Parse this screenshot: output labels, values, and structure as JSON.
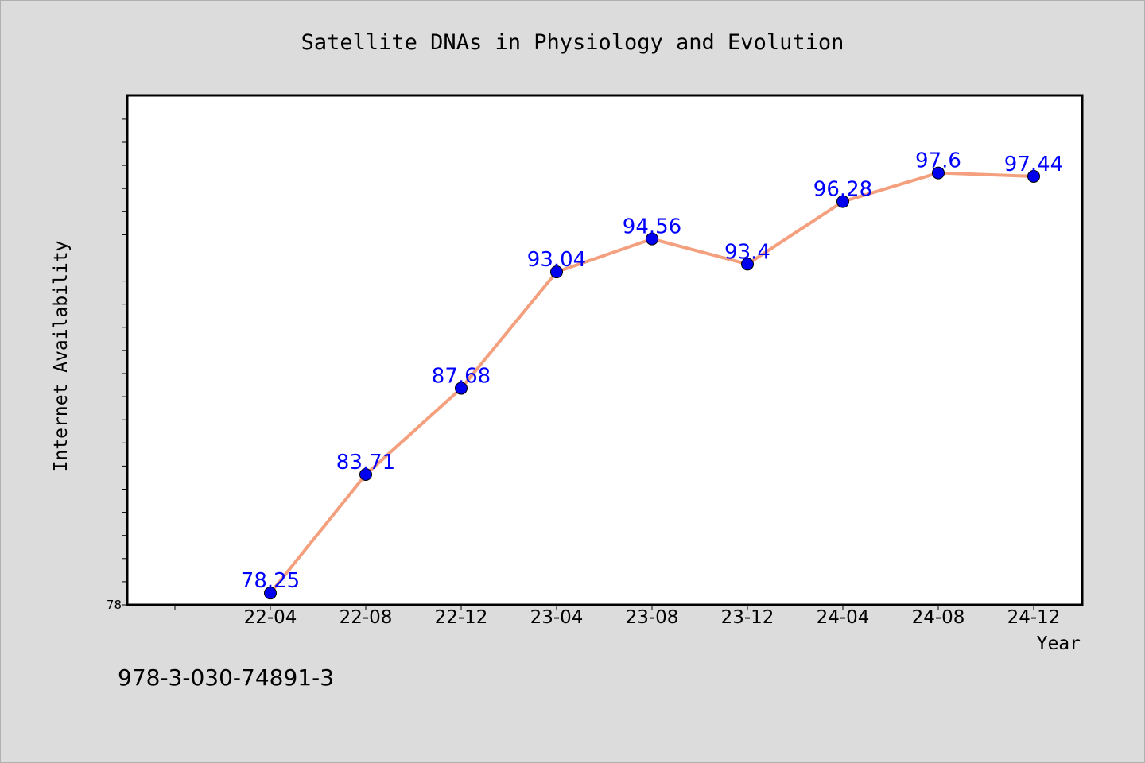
{
  "chart_data": {
    "type": "line",
    "title": "Satellite DNAs in Physiology and Evolution",
    "xlabel": "Year",
    "ylabel": "Internet Availability",
    "categories": [
      "22-04",
      "22-08",
      "22-12",
      "23-04",
      "23-08",
      "23-12",
      "24-04",
      "24-08",
      "24-12"
    ],
    "series": [
      {
        "values": [
          78.25,
          83.71,
          87.68,
          93.04,
          94.56,
          93.4,
          96.28,
          97.6,
          97.44
        ],
        "data_labels": [
          "78.25",
          "83.71",
          "87.68",
          "93.04",
          "94.56",
          "93.4",
          "96.28",
          "97.6",
          "97.44"
        ],
        "line_color": "#f4a07e",
        "marker_color": "#0000ee",
        "label_color": "#0000ff"
      }
    ],
    "ylim": [
      78,
      100
    ],
    "y_tick_labels": [
      "78"
    ],
    "grid": false,
    "legend": "none"
  },
  "footer": {
    "isbn": "978-3-030-74891-3"
  },
  "colors": {
    "background": "#dcdcdc",
    "plot_background": "#ffffff",
    "axis": "#000000"
  }
}
